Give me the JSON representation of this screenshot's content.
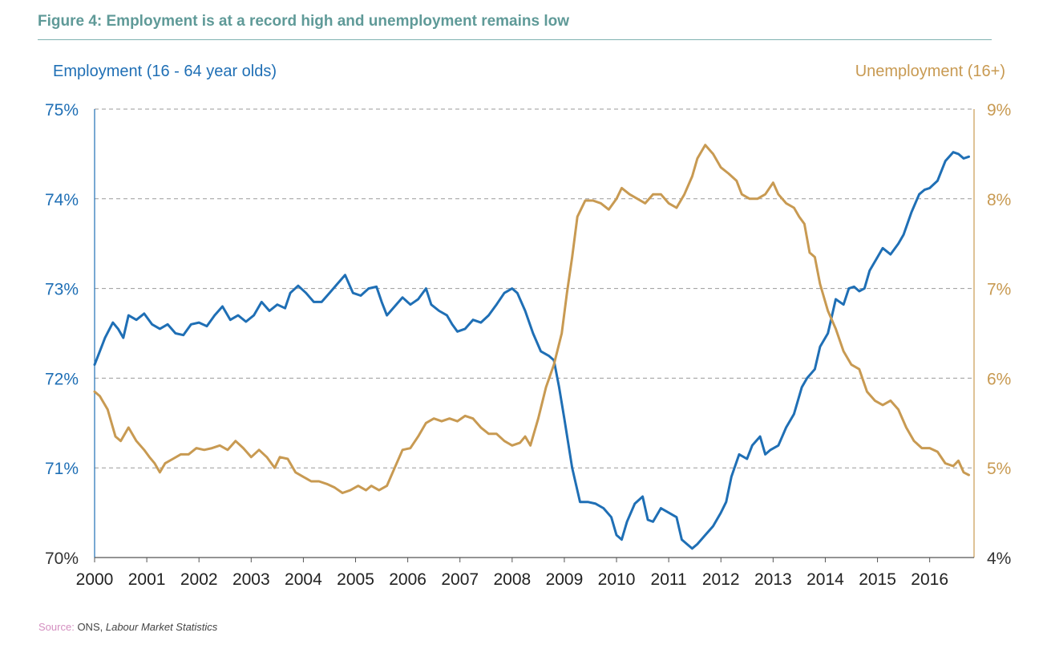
{
  "figure": {
    "title": "Figure 4: Employment is at a record high and unemployment remains low"
  },
  "source": {
    "label": "Source:",
    "publisher": "ONS,",
    "publication": "Labour Market Statistics"
  },
  "colors": {
    "employment": "#1f6fb5",
    "unemployment": "#c89a52",
    "grid": "#9a9a9a",
    "title": "#5f9a98"
  },
  "chart_data": {
    "type": "line",
    "grid": true,
    "x_axis": {
      "range": [
        2000,
        2016.85
      ],
      "ticks": [
        2000,
        2001,
        2002,
        2003,
        2004,
        2005,
        2006,
        2007,
        2008,
        2009,
        2010,
        2011,
        2012,
        2013,
        2014,
        2015,
        2016
      ],
      "tick_labels": [
        "2000",
        "2001",
        "2002",
        "2003",
        "2004",
        "2005",
        "2006",
        "2007",
        "2008",
        "2009",
        "2010",
        "2011",
        "2012",
        "2013",
        "2014",
        "2015",
        "2016"
      ]
    },
    "y_axis_left": {
      "label": "Employment (16 - 64 year olds)",
      "range": [
        70,
        75
      ],
      "ticks": [
        70,
        71,
        72,
        73,
        74,
        75
      ],
      "tick_labels": [
        "70%",
        "71%",
        "72%",
        "73%",
        "74%",
        "75%"
      ]
    },
    "y_axis_right": {
      "label": "Unemployment (16+)",
      "range": [
        4,
        9
      ],
      "ticks": [
        4,
        5,
        6,
        7,
        8,
        9
      ],
      "tick_labels": [
        "4%",
        "5%",
        "6%",
        "7%",
        "8%",
        "9%"
      ]
    },
    "series": [
      {
        "name": "Employment (16 - 64 year olds)",
        "axis": "left",
        "color": "#1f6fb5",
        "points": [
          [
            2000.0,
            72.15
          ],
          [
            2000.1,
            72.3
          ],
          [
            2000.2,
            72.45
          ],
          [
            2000.35,
            72.62
          ],
          [
            2000.45,
            72.55
          ],
          [
            2000.55,
            72.45
          ],
          [
            2000.65,
            72.7
          ],
          [
            2000.8,
            72.65
          ],
          [
            2000.95,
            72.72
          ],
          [
            2001.1,
            72.6
          ],
          [
            2001.25,
            72.55
          ],
          [
            2001.4,
            72.6
          ],
          [
            2001.55,
            72.5
          ],
          [
            2001.7,
            72.48
          ],
          [
            2001.85,
            72.6
          ],
          [
            2002.0,
            72.62
          ],
          [
            2002.15,
            72.58
          ],
          [
            2002.3,
            72.7
          ],
          [
            2002.45,
            72.8
          ],
          [
            2002.6,
            72.65
          ],
          [
            2002.75,
            72.7
          ],
          [
            2002.9,
            72.63
          ],
          [
            2003.05,
            72.7
          ],
          [
            2003.2,
            72.85
          ],
          [
            2003.35,
            72.75
          ],
          [
            2003.5,
            72.82
          ],
          [
            2003.65,
            72.78
          ],
          [
            2003.75,
            72.95
          ],
          [
            2003.9,
            73.03
          ],
          [
            2004.05,
            72.95
          ],
          [
            2004.2,
            72.85
          ],
          [
            2004.35,
            72.85
          ],
          [
            2004.5,
            72.95
          ],
          [
            2004.65,
            73.05
          ],
          [
            2004.8,
            73.15
          ],
          [
            2004.95,
            72.95
          ],
          [
            2005.1,
            72.92
          ],
          [
            2005.25,
            73.0
          ],
          [
            2005.4,
            73.02
          ],
          [
            2005.5,
            72.85
          ],
          [
            2005.6,
            72.7
          ],
          [
            2005.75,
            72.8
          ],
          [
            2005.9,
            72.9
          ],
          [
            2006.05,
            72.82
          ],
          [
            2006.2,
            72.88
          ],
          [
            2006.35,
            73.0
          ],
          [
            2006.45,
            72.82
          ],
          [
            2006.6,
            72.75
          ],
          [
            2006.75,
            72.7
          ],
          [
            2006.85,
            72.6
          ],
          [
            2006.95,
            72.52
          ],
          [
            2007.1,
            72.55
          ],
          [
            2007.25,
            72.65
          ],
          [
            2007.4,
            72.62
          ],
          [
            2007.55,
            72.7
          ],
          [
            2007.7,
            72.82
          ],
          [
            2007.85,
            72.95
          ],
          [
            2008.0,
            73.0
          ],
          [
            2008.1,
            72.95
          ],
          [
            2008.25,
            72.75
          ],
          [
            2008.4,
            72.5
          ],
          [
            2008.55,
            72.3
          ],
          [
            2008.7,
            72.25
          ],
          [
            2008.8,
            72.2
          ],
          [
            2008.9,
            71.9
          ],
          [
            2009.0,
            71.55
          ],
          [
            2009.15,
            71.0
          ],
          [
            2009.3,
            70.62
          ],
          [
            2009.45,
            70.62
          ],
          [
            2009.6,
            70.6
          ],
          [
            2009.75,
            70.55
          ],
          [
            2009.9,
            70.45
          ],
          [
            2010.0,
            70.25
          ],
          [
            2010.1,
            70.2
          ],
          [
            2010.2,
            70.4
          ],
          [
            2010.35,
            70.6
          ],
          [
            2010.5,
            70.68
          ],
          [
            2010.6,
            70.42
          ],
          [
            2010.7,
            70.4
          ],
          [
            2010.85,
            70.55
          ],
          [
            2011.0,
            70.5
          ],
          [
            2011.15,
            70.45
          ],
          [
            2011.25,
            70.2
          ],
          [
            2011.35,
            70.15
          ],
          [
            2011.45,
            70.1
          ],
          [
            2011.55,
            70.15
          ],
          [
            2011.7,
            70.25
          ],
          [
            2011.85,
            70.35
          ],
          [
            2012.0,
            70.5
          ],
          [
            2012.1,
            70.62
          ],
          [
            2012.2,
            70.9
          ],
          [
            2012.35,
            71.15
          ],
          [
            2012.5,
            71.1
          ],
          [
            2012.6,
            71.25
          ],
          [
            2012.75,
            71.35
          ],
          [
            2012.85,
            71.15
          ],
          [
            2012.95,
            71.2
          ],
          [
            2013.1,
            71.25
          ],
          [
            2013.25,
            71.45
          ],
          [
            2013.4,
            71.6
          ],
          [
            2013.55,
            71.9
          ],
          [
            2013.65,
            72.0
          ],
          [
            2013.8,
            72.1
          ],
          [
            2013.9,
            72.35
          ],
          [
            2014.05,
            72.5
          ],
          [
            2014.2,
            72.88
          ],
          [
            2014.35,
            72.82
          ],
          [
            2014.45,
            73.0
          ],
          [
            2014.55,
            73.02
          ],
          [
            2014.65,
            72.97
          ],
          [
            2014.75,
            73.0
          ],
          [
            2014.85,
            73.2
          ],
          [
            2015.0,
            73.35
          ],
          [
            2015.1,
            73.45
          ],
          [
            2015.25,
            73.38
          ],
          [
            2015.4,
            73.5
          ],
          [
            2015.5,
            73.6
          ],
          [
            2015.65,
            73.85
          ],
          [
            2015.8,
            74.05
          ],
          [
            2015.9,
            74.1
          ],
          [
            2016.0,
            74.12
          ],
          [
            2016.15,
            74.2
          ],
          [
            2016.3,
            74.42
          ],
          [
            2016.45,
            74.52
          ],
          [
            2016.55,
            74.5
          ],
          [
            2016.65,
            74.45
          ],
          [
            2016.75,
            74.47
          ]
        ]
      },
      {
        "name": "Unemployment (16+)",
        "axis": "right",
        "color": "#c89a52",
        "points": [
          [
            2000.0,
            5.85
          ],
          [
            2000.1,
            5.8
          ],
          [
            2000.25,
            5.65
          ],
          [
            2000.4,
            5.35
          ],
          [
            2000.5,
            5.3
          ],
          [
            2000.65,
            5.45
          ],
          [
            2000.8,
            5.3
          ],
          [
            2000.95,
            5.2
          ],
          [
            2001.05,
            5.12
          ],
          [
            2001.15,
            5.05
          ],
          [
            2001.25,
            4.95
          ],
          [
            2001.35,
            5.05
          ],
          [
            2001.5,
            5.1
          ],
          [
            2001.65,
            5.15
          ],
          [
            2001.8,
            5.15
          ],
          [
            2001.95,
            5.22
          ],
          [
            2002.1,
            5.2
          ],
          [
            2002.25,
            5.22
          ],
          [
            2002.4,
            5.25
          ],
          [
            2002.55,
            5.2
          ],
          [
            2002.7,
            5.3
          ],
          [
            2002.85,
            5.22
          ],
          [
            2003.0,
            5.12
          ],
          [
            2003.15,
            5.2
          ],
          [
            2003.3,
            5.12
          ],
          [
            2003.45,
            5.0
          ],
          [
            2003.55,
            5.12
          ],
          [
            2003.7,
            5.1
          ],
          [
            2003.85,
            4.95
          ],
          [
            2004.0,
            4.9
          ],
          [
            2004.15,
            4.85
          ],
          [
            2004.3,
            4.85
          ],
          [
            2004.45,
            4.82
          ],
          [
            2004.6,
            4.78
          ],
          [
            2004.75,
            4.72
          ],
          [
            2004.9,
            4.75
          ],
          [
            2005.05,
            4.8
          ],
          [
            2005.2,
            4.75
          ],
          [
            2005.3,
            4.8
          ],
          [
            2005.45,
            4.75
          ],
          [
            2005.6,
            4.8
          ],
          [
            2005.75,
            5.0
          ],
          [
            2005.9,
            5.2
          ],
          [
            2006.05,
            5.22
          ],
          [
            2006.2,
            5.35
          ],
          [
            2006.35,
            5.5
          ],
          [
            2006.5,
            5.55
          ],
          [
            2006.65,
            5.52
          ],
          [
            2006.8,
            5.55
          ],
          [
            2006.95,
            5.52
          ],
          [
            2007.1,
            5.58
          ],
          [
            2007.25,
            5.55
          ],
          [
            2007.4,
            5.45
          ],
          [
            2007.55,
            5.38
          ],
          [
            2007.7,
            5.38
          ],
          [
            2007.85,
            5.3
          ],
          [
            2008.0,
            5.25
          ],
          [
            2008.15,
            5.28
          ],
          [
            2008.25,
            5.35
          ],
          [
            2008.35,
            5.25
          ],
          [
            2008.5,
            5.55
          ],
          [
            2008.65,
            5.9
          ],
          [
            2008.8,
            6.15
          ],
          [
            2008.95,
            6.5
          ],
          [
            2009.05,
            6.95
          ],
          [
            2009.15,
            7.35
          ],
          [
            2009.25,
            7.8
          ],
          [
            2009.4,
            7.98
          ],
          [
            2009.55,
            7.98
          ],
          [
            2009.7,
            7.95
          ],
          [
            2009.85,
            7.88
          ],
          [
            2010.0,
            8.0
          ],
          [
            2010.1,
            8.12
          ],
          [
            2010.25,
            8.05
          ],
          [
            2010.4,
            8.0
          ],
          [
            2010.55,
            7.95
          ],
          [
            2010.7,
            8.05
          ],
          [
            2010.85,
            8.05
          ],
          [
            2011.0,
            7.95
          ],
          [
            2011.15,
            7.9
          ],
          [
            2011.3,
            8.05
          ],
          [
            2011.45,
            8.25
          ],
          [
            2011.55,
            8.45
          ],
          [
            2011.7,
            8.6
          ],
          [
            2011.85,
            8.5
          ],
          [
            2012.0,
            8.35
          ],
          [
            2012.15,
            8.28
          ],
          [
            2012.3,
            8.2
          ],
          [
            2012.4,
            8.05
          ],
          [
            2012.55,
            8.0
          ],
          [
            2012.7,
            8.0
          ],
          [
            2012.85,
            8.05
          ],
          [
            2013.0,
            8.18
          ],
          [
            2013.1,
            8.05
          ],
          [
            2013.25,
            7.95
          ],
          [
            2013.4,
            7.9
          ],
          [
            2013.5,
            7.8
          ],
          [
            2013.6,
            7.72
          ],
          [
            2013.7,
            7.4
          ],
          [
            2013.8,
            7.35
          ],
          [
            2013.9,
            7.05
          ],
          [
            2014.05,
            6.75
          ],
          [
            2014.2,
            6.55
          ],
          [
            2014.35,
            6.3
          ],
          [
            2014.5,
            6.15
          ],
          [
            2014.65,
            6.1
          ],
          [
            2014.8,
            5.85
          ],
          [
            2014.95,
            5.75
          ],
          [
            2015.1,
            5.7
          ],
          [
            2015.25,
            5.75
          ],
          [
            2015.4,
            5.65
          ],
          [
            2015.55,
            5.45
          ],
          [
            2015.7,
            5.3
          ],
          [
            2015.85,
            5.22
          ],
          [
            2016.0,
            5.22
          ],
          [
            2016.15,
            5.18
          ],
          [
            2016.3,
            5.05
          ],
          [
            2016.45,
            5.02
          ],
          [
            2016.55,
            5.08
          ],
          [
            2016.65,
            4.95
          ],
          [
            2016.75,
            4.92
          ]
        ]
      }
    ]
  }
}
